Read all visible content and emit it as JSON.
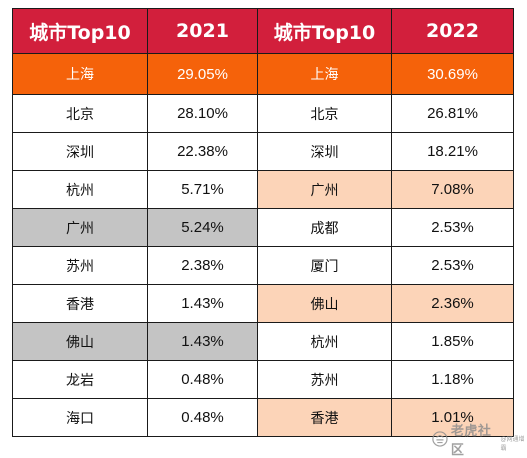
{
  "table": {
    "headers": [
      "城市Top10",
      "2021",
      "城市Top10",
      "2022"
    ],
    "rows": [
      {
        "city_2021": "上海",
        "share_2021": "29.05%",
        "city_2022": "上海",
        "share_2022": "30.69%"
      },
      {
        "city_2021": "北京",
        "share_2021": "28.10%",
        "city_2022": "北京",
        "share_2022": "26.81%"
      },
      {
        "city_2021": "深圳",
        "share_2021": "22.38%",
        "city_2022": "深圳",
        "share_2022": "18.21%"
      },
      {
        "city_2021": "杭州",
        "share_2021": "5.71%",
        "city_2022": "广州",
        "share_2022": "7.08%"
      },
      {
        "city_2021": "广州",
        "share_2021": "5.24%",
        "city_2022": "成都",
        "share_2022": "2.53%"
      },
      {
        "city_2021": "苏州",
        "share_2021": "2.38%",
        "city_2022": "厦门",
        "share_2022": "2.53%"
      },
      {
        "city_2021": "香港",
        "share_2021": "1.43%",
        "city_2022": "佛山",
        "share_2022": "2.36%"
      },
      {
        "city_2021": "佛山",
        "share_2021": "1.43%",
        "city_2022": "杭州",
        "share_2022": "1.85%"
      },
      {
        "city_2021": "龙岩",
        "share_2021": "0.48%",
        "city_2022": "苏州",
        "share_2022": "1.18%"
      },
      {
        "city_2021": "海口",
        "share_2021": "0.48%",
        "city_2022": "香港",
        "share_2022": "1.01%"
      }
    ]
  },
  "colors": {
    "header_bg": "#d21f3c",
    "top_row_bg": "#f5620a",
    "highlight_2022": "#fcd4b8",
    "highlight_2021": "#c4c4c4"
  },
  "watermark": {
    "text": "老虎社区",
    "subtext": "@网通增霸",
    "icon": "tiger-logo-icon"
  }
}
